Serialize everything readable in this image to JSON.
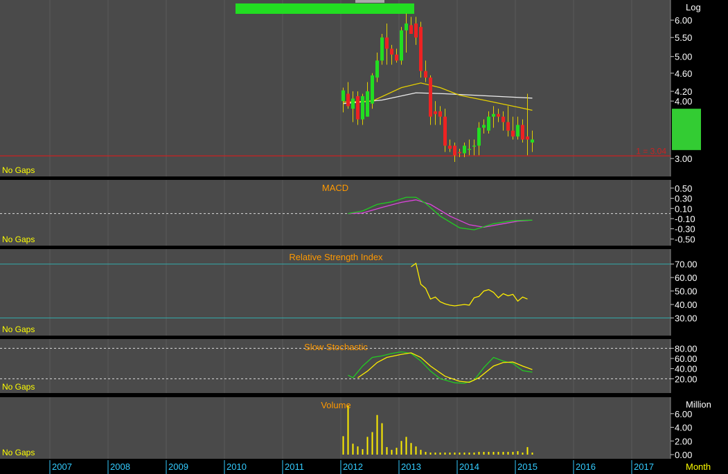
{
  "colors": {
    "background": "#000000",
    "panel": "#4a4a4a",
    "axis_text": "#ffffff",
    "label_orange": "#ff9900",
    "nogaps_yellow": "#ffff00",
    "candle_up": "#22dd22",
    "candle_down": "#ee2222",
    "ma_yellow": "#e6d000",
    "ma_white": "#eeeeee",
    "macd_green": "#22cc22",
    "macd_magenta": "#dd44dd",
    "stoch_green": "#22cc22",
    "stoch_yellow": "#ffee00",
    "rsi_line": "#ffee00",
    "volume_bar": "#ffee00",
    "threshold_cyan": "#33aaaa",
    "support_red": "#cc2222",
    "year_axis_text": "#33ccff",
    "green_box": "#33cc33"
  },
  "axis": {
    "x_unit_label": "Month",
    "years": [
      "2007",
      "2008",
      "2009",
      "2010",
      "2011",
      "2012",
      "2013",
      "2014",
      "2015",
      "2016",
      "2017"
    ]
  },
  "chart_data": [
    {
      "id": "price",
      "type": "candlestick",
      "scale_label": "Log",
      "scale": "log",
      "ylim": [
        2.8,
        6.5
      ],
      "ticks": [
        "6.00",
        "5.50",
        "5.00",
        "4.60",
        "4.20",
        "4.00",
        "3.00"
      ],
      "no_gaps_label": "No Gaps",
      "support_line": {
        "label": "1 = 3.04",
        "value": 3.04
      },
      "candles": [
        {
          "t": "2012-01",
          "o": 4.0,
          "h": 4.28,
          "l": 3.78,
          "c": 4.22
        },
        {
          "t": "2012-02",
          "o": 4.15,
          "h": 4.4,
          "l": 3.85,
          "c": 3.9
        },
        {
          "t": "2012-03",
          "o": 3.85,
          "h": 4.2,
          "l": 3.6,
          "c": 4.05
        },
        {
          "t": "2012-04",
          "o": 4.1,
          "h": 4.2,
          "l": 3.55,
          "c": 3.65
        },
        {
          "t": "2012-05",
          "o": 3.65,
          "h": 4.15,
          "l": 3.55,
          "c": 4.1
        },
        {
          "t": "2012-06",
          "o": 3.7,
          "h": 4.4,
          "l": 3.7,
          "c": 4.2
        },
        {
          "t": "2012-07",
          "o": 3.95,
          "h": 4.6,
          "l": 3.85,
          "c": 4.55
        },
        {
          "t": "2012-08",
          "o": 4.5,
          "h": 5.1,
          "l": 4.4,
          "c": 4.9
        },
        {
          "t": "2012-09",
          "o": 4.9,
          "h": 5.6,
          "l": 4.8,
          "c": 5.5
        },
        {
          "t": "2012-10",
          "o": 5.5,
          "h": 5.9,
          "l": 4.8,
          "c": 5.2
        },
        {
          "t": "2012-11",
          "o": 5.2,
          "h": 5.3,
          "l": 4.8,
          "c": 5.05
        },
        {
          "t": "2012-12",
          "o": 5.05,
          "h": 5.2,
          "l": 4.85,
          "c": 4.9
        },
        {
          "t": "2013-01",
          "o": 4.9,
          "h": 5.8,
          "l": 4.8,
          "c": 5.7
        },
        {
          "t": "2013-02",
          "o": 5.7,
          "h": 6.2,
          "l": 5.1,
          "c": 5.9
        },
        {
          "t": "2013-03",
          "o": 5.85,
          "h": 6.1,
          "l": 5.6,
          "c": 5.6
        },
        {
          "t": "2013-04",
          "o": 5.9,
          "h": 6.1,
          "l": 5.3,
          "c": 5.5
        },
        {
          "t": "2013-05",
          "o": 5.8,
          "h": 5.95,
          "l": 4.5,
          "c": 4.65
        },
        {
          "t": "2013-06",
          "o": 4.65,
          "h": 4.9,
          "l": 4.4,
          "c": 4.5
        },
        {
          "t": "2013-07",
          "o": 4.5,
          "h": 4.55,
          "l": 3.55,
          "c": 3.7
        },
        {
          "t": "2013-08",
          "o": 3.8,
          "h": 4.0,
          "l": 3.55,
          "c": 3.75
        },
        {
          "t": "2013-09",
          "o": 3.8,
          "h": 3.9,
          "l": 3.55,
          "c": 3.7
        },
        {
          "t": "2013-10",
          "o": 3.7,
          "h": 3.85,
          "l": 3.1,
          "c": 3.2
        },
        {
          "t": "2013-11",
          "o": 3.2,
          "h": 3.3,
          "l": 3.1,
          "c": 3.15
        },
        {
          "t": "2013-12",
          "o": 3.2,
          "h": 3.25,
          "l": 2.95,
          "c": 3.05
        },
        {
          "t": "2014-01",
          "o": 3.1,
          "h": 3.15,
          "l": 3.02,
          "c": 3.08
        },
        {
          "t": "2014-02",
          "o": 3.08,
          "h": 3.25,
          "l": 3.02,
          "c": 3.2
        },
        {
          "t": "2014-03",
          "o": 3.15,
          "h": 3.3,
          "l": 3.05,
          "c": 3.15
        },
        {
          "t": "2014-04",
          "o": 3.2,
          "h": 3.3,
          "l": 3.05,
          "c": 3.2
        },
        {
          "t": "2014-05",
          "o": 3.2,
          "h": 3.6,
          "l": 3.05,
          "c": 3.5
        },
        {
          "t": "2014-06",
          "o": 3.5,
          "h": 3.65,
          "l": 3.4,
          "c": 3.55
        },
        {
          "t": "2014-07",
          "o": 3.45,
          "h": 3.8,
          "l": 3.4,
          "c": 3.7
        },
        {
          "t": "2014-08",
          "o": 3.7,
          "h": 3.9,
          "l": 3.5,
          "c": 3.75
        },
        {
          "t": "2014-09",
          "o": 3.75,
          "h": 3.85,
          "l": 3.6,
          "c": 3.7
        },
        {
          "t": "2014-10",
          "o": 3.7,
          "h": 3.8,
          "l": 3.45,
          "c": 3.6
        },
        {
          "t": "2014-11",
          "o": 3.6,
          "h": 3.9,
          "l": 3.35,
          "c": 3.45
        },
        {
          "t": "2014-12",
          "o": 3.45,
          "h": 3.7,
          "l": 3.3,
          "c": 3.35
        },
        {
          "t": "2015-01",
          "o": 3.35,
          "h": 3.7,
          "l": 3.3,
          "c": 3.55
        },
        {
          "t": "2015-02",
          "o": 3.55,
          "h": 3.65,
          "l": 3.25,
          "c": 3.3
        },
        {
          "t": "2015-03",
          "o": 3.35,
          "h": 4.15,
          "l": 3.05,
          "c": 3.3
        },
        {
          "t": "2015-04",
          "o": 3.25,
          "h": 3.45,
          "l": 3.1,
          "c": 3.3
        }
      ],
      "ma_yellow": [
        {
          "t": "2012-01",
          "v": 3.98
        },
        {
          "t": "2012-07",
          "v": 4.0
        },
        {
          "t": "2013-01",
          "v": 4.28
        },
        {
          "t": "2013-05",
          "v": 4.38
        },
        {
          "t": "2013-09",
          "v": 4.28
        },
        {
          "t": "2014-01",
          "v": 4.12
        },
        {
          "t": "2014-07",
          "v": 4.0
        },
        {
          "t": "2015-01",
          "v": 3.88
        },
        {
          "t": "2015-04",
          "v": 3.82
        }
      ],
      "ma_white": [
        {
          "t": "2012-01",
          "v": 3.95
        },
        {
          "t": "2012-09",
          "v": 4.02
        },
        {
          "t": "2013-04",
          "v": 4.17
        },
        {
          "t": "2013-10",
          "v": 4.15
        },
        {
          "t": "2014-08",
          "v": 4.1
        },
        {
          "t": "2015-04",
          "v": 4.06
        }
      ]
    },
    {
      "id": "macd",
      "type": "line",
      "title": "MACD",
      "no_gaps_label": "No Gaps",
      "ylim": [
        -0.55,
        0.58
      ],
      "ticks": [
        "0.50",
        "0.30",
        "0.10",
        "-0.10",
        "-0.30",
        "-0.50"
      ],
      "zero_line": 0,
      "series": [
        {
          "color": "green",
          "points": [
            {
              "t": "2012-02",
              "v": 0.0
            },
            {
              "t": "2012-05",
              "v": 0.05
            },
            {
              "t": "2012-08",
              "v": 0.18
            },
            {
              "t": "2012-11",
              "v": 0.23
            },
            {
              "t": "2013-02",
              "v": 0.32
            },
            {
              "t": "2013-04",
              "v": 0.32
            },
            {
              "t": "2013-06",
              "v": 0.2
            },
            {
              "t": "2013-09",
              "v": -0.05
            },
            {
              "t": "2014-01",
              "v": -0.28
            },
            {
              "t": "2014-04",
              "v": -0.32
            },
            {
              "t": "2014-08",
              "v": -0.2
            },
            {
              "t": "2014-12",
              "v": -0.14
            },
            {
              "t": "2015-04",
              "v": -0.13
            }
          ]
        },
        {
          "color": "magenta",
          "points": [
            {
              "t": "2012-02",
              "v": 0.0
            },
            {
              "t": "2012-05",
              "v": 0.01
            },
            {
              "t": "2012-09",
              "v": 0.12
            },
            {
              "t": "2013-01",
              "v": 0.22
            },
            {
              "t": "2013-04",
              "v": 0.27
            },
            {
              "t": "2013-07",
              "v": 0.18
            },
            {
              "t": "2013-11",
              "v": -0.05
            },
            {
              "t": "2014-03",
              "v": -0.22
            },
            {
              "t": "2014-06",
              "v": -0.27
            },
            {
              "t": "2014-10",
              "v": -0.2
            },
            {
              "t": "2015-01",
              "v": -0.15
            },
            {
              "t": "2015-04",
              "v": -0.13
            }
          ]
        }
      ]
    },
    {
      "id": "rsi",
      "type": "line",
      "title": "Relative Strength Index",
      "no_gaps_label": "No Gaps",
      "ylim": [
        20,
        78
      ],
      "ticks": [
        "70.00",
        "60.00",
        "50.00",
        "40.00",
        "30.00"
      ],
      "thresholds": [
        70,
        30
      ],
      "series": [
        {
          "color": "yellow",
          "points": [
            {
              "t": "2013-03",
              "v": 68
            },
            {
              "t": "2013-04",
              "v": 70.5
            },
            {
              "t": "2013-05",
              "v": 55
            },
            {
              "t": "2013-06",
              "v": 52
            },
            {
              "t": "2013-07",
              "v": 44
            },
            {
              "t": "2013-08",
              "v": 45.5
            },
            {
              "t": "2013-09",
              "v": 42
            },
            {
              "t": "2013-10",
              "v": 40.5
            },
            {
              "t": "2013-11",
              "v": 39.5
            },
            {
              "t": "2013-12",
              "v": 39
            },
            {
              "t": "2014-01",
              "v": 39.5
            },
            {
              "t": "2014-02",
              "v": 40
            },
            {
              "t": "2014-03",
              "v": 39.5
            },
            {
              "t": "2014-04",
              "v": 45
            },
            {
              "t": "2014-05",
              "v": 46
            },
            {
              "t": "2014-06",
              "v": 50
            },
            {
              "t": "2014-07",
              "v": 51
            },
            {
              "t": "2014-08",
              "v": 49
            },
            {
              "t": "2014-09",
              "v": 45
            },
            {
              "t": "2014-10",
              "v": 48
            },
            {
              "t": "2014-11",
              "v": 46.5
            },
            {
              "t": "2014-12",
              "v": 47.5
            },
            {
              "t": "2015-01",
              "v": 42.5
            },
            {
              "t": "2015-02",
              "v": 45.5
            },
            {
              "t": "2015-03",
              "v": 44
            }
          ]
        }
      ]
    },
    {
      "id": "stochastic",
      "type": "line",
      "title": "Slow Stochastic",
      "no_gaps_label": "No Gaps",
      "ylim": [
        0,
        90
      ],
      "ticks": [
        "80.00",
        "60.00",
        "40.00",
        "20.00"
      ],
      "thresholds": [
        80,
        20
      ],
      "series": [
        {
          "color": "green",
          "points": [
            {
              "t": "2012-02",
              "v": 27
            },
            {
              "t": "2012-03",
              "v": 22
            },
            {
              "t": "2012-05",
              "v": 45
            },
            {
              "t": "2012-07",
              "v": 62
            },
            {
              "t": "2012-09",
              "v": 65
            },
            {
              "t": "2012-11",
              "v": 70
            },
            {
              "t": "2013-01",
              "v": 73
            },
            {
              "t": "2013-03",
              "v": 70
            },
            {
              "t": "2013-05",
              "v": 55
            },
            {
              "t": "2013-07",
              "v": 35
            },
            {
              "t": "2013-09",
              "v": 20
            },
            {
              "t": "2013-12",
              "v": 12
            },
            {
              "t": "2014-02",
              "v": 11
            },
            {
              "t": "2014-04",
              "v": 17
            },
            {
              "t": "2014-06",
              "v": 42
            },
            {
              "t": "2014-08",
              "v": 62
            },
            {
              "t": "2014-10",
              "v": 55
            },
            {
              "t": "2014-12",
              "v": 50
            },
            {
              "t": "2015-02",
              "v": 36
            },
            {
              "t": "2015-04",
              "v": 33
            }
          ]
        },
        {
          "color": "yellow",
          "points": [
            {
              "t": "2012-04",
              "v": 22
            },
            {
              "t": "2012-06",
              "v": 35
            },
            {
              "t": "2012-08",
              "v": 52
            },
            {
              "t": "2012-10",
              "v": 62
            },
            {
              "t": "2013-01",
              "v": 68
            },
            {
              "t": "2013-03",
              "v": 71
            },
            {
              "t": "2013-05",
              "v": 62
            },
            {
              "t": "2013-07",
              "v": 45
            },
            {
              "t": "2013-10",
              "v": 25
            },
            {
              "t": "2014-01",
              "v": 15
            },
            {
              "t": "2014-03",
              "v": 13
            },
            {
              "t": "2014-05",
              "v": 22
            },
            {
              "t": "2014-08",
              "v": 45
            },
            {
              "t": "2014-10",
              "v": 52
            },
            {
              "t": "2014-12",
              "v": 53
            },
            {
              "t": "2015-02",
              "v": 45
            },
            {
              "t": "2015-04",
              "v": 38
            }
          ]
        }
      ]
    },
    {
      "id": "volume",
      "type": "bar",
      "title": "Volume",
      "unit_label": "Million",
      "no_gaps_label": "No Gaps",
      "ylim": [
        0,
        7.8
      ],
      "ticks": [
        "6.00",
        "4.00",
        "2.00",
        "0.00"
      ],
      "bars": [
        {
          "t": "2012-01",
          "v": 2.7
        },
        {
          "t": "2012-02",
          "v": 7.2
        },
        {
          "t": "2012-03",
          "v": 1.6
        },
        {
          "t": "2012-04",
          "v": 1.2
        },
        {
          "t": "2012-05",
          "v": 0.8
        },
        {
          "t": "2012-06",
          "v": 2.6
        },
        {
          "t": "2012-07",
          "v": 3.3
        },
        {
          "t": "2012-08",
          "v": 5.8
        },
        {
          "t": "2012-09",
          "v": 4.6
        },
        {
          "t": "2012-10",
          "v": 1.1
        },
        {
          "t": "2012-11",
          "v": 0.7
        },
        {
          "t": "2012-12",
          "v": 1.0
        },
        {
          "t": "2013-01",
          "v": 2.0
        },
        {
          "t": "2013-02",
          "v": 2.6
        },
        {
          "t": "2013-03",
          "v": 1.7
        },
        {
          "t": "2013-04",
          "v": 1.2
        },
        {
          "t": "2013-05",
          "v": 0.7
        },
        {
          "t": "2013-06",
          "v": 0.4
        },
        {
          "t": "2013-07",
          "v": 0.3
        },
        {
          "t": "2013-08",
          "v": 0.3
        },
        {
          "t": "2013-09",
          "v": 0.3
        },
        {
          "t": "2013-10",
          "v": 0.3
        },
        {
          "t": "2013-11",
          "v": 0.3
        },
        {
          "t": "2013-12",
          "v": 0.3
        },
        {
          "t": "2014-01",
          "v": 0.3
        },
        {
          "t": "2014-02",
          "v": 0.3
        },
        {
          "t": "2014-03",
          "v": 0.3
        },
        {
          "t": "2014-04",
          "v": 0.3
        },
        {
          "t": "2014-05",
          "v": 0.4
        },
        {
          "t": "2014-06",
          "v": 0.4
        },
        {
          "t": "2014-07",
          "v": 0.4
        },
        {
          "t": "2014-08",
          "v": 0.4
        },
        {
          "t": "2014-09",
          "v": 0.4
        },
        {
          "t": "2014-10",
          "v": 0.4
        },
        {
          "t": "2014-11",
          "v": 0.4
        },
        {
          "t": "2014-12",
          "v": 0.4
        },
        {
          "t": "2015-01",
          "v": 0.5
        },
        {
          "t": "2015-02",
          "v": 0.3
        },
        {
          "t": "2015-03",
          "v": 1.1
        },
        {
          "t": "2015-04",
          "v": 0.3
        }
      ]
    }
  ]
}
